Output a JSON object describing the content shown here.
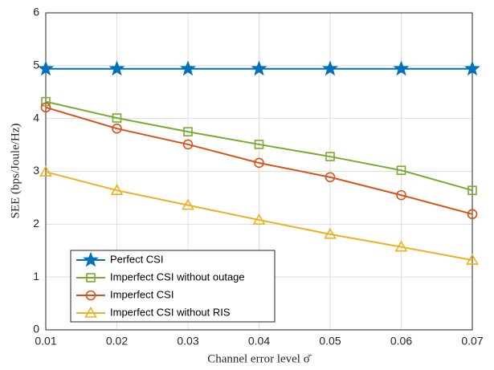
{
  "chart_data": {
    "type": "line",
    "x_label": "Channel error level σ̄",
    "y_label": "SEE (bps/Joule/Hz)",
    "x": [
      0.01,
      0.02,
      0.03,
      0.04,
      0.05,
      0.06,
      0.07
    ],
    "xlim": [
      0.01,
      0.07
    ],
    "xticks": [
      0.01,
      0.02,
      0.03,
      0.04,
      0.05,
      0.06,
      0.07
    ],
    "ylim": [
      0,
      6
    ],
    "yticks": [
      0,
      1,
      2,
      3,
      4,
      5,
      6
    ],
    "grid": true,
    "legend": "lower left",
    "series": [
      {
        "name": "Perfect CSI",
        "color": "#0072BD",
        "marker": "star",
        "values": [
          4.94,
          4.94,
          4.94,
          4.94,
          4.94,
          4.94,
          4.94
        ]
      },
      {
        "name": "Imperfect CSI without outage",
        "color": "#77AC30",
        "marker": "square",
        "values": [
          4.32,
          4.01,
          3.75,
          3.51,
          3.28,
          3.02,
          2.64
        ]
      },
      {
        "name": "Imperfect CSI",
        "color": "#D95319",
        "marker": "circle",
        "values": [
          4.21,
          3.81,
          3.51,
          3.16,
          2.89,
          2.55,
          2.19
        ]
      },
      {
        "name": "Imperfect CSI  without RIS",
        "color": "#EDB120",
        "marker": "triangle",
        "values": [
          2.99,
          2.64,
          2.36,
          2.08,
          1.81,
          1.57,
          1.32
        ]
      }
    ]
  }
}
